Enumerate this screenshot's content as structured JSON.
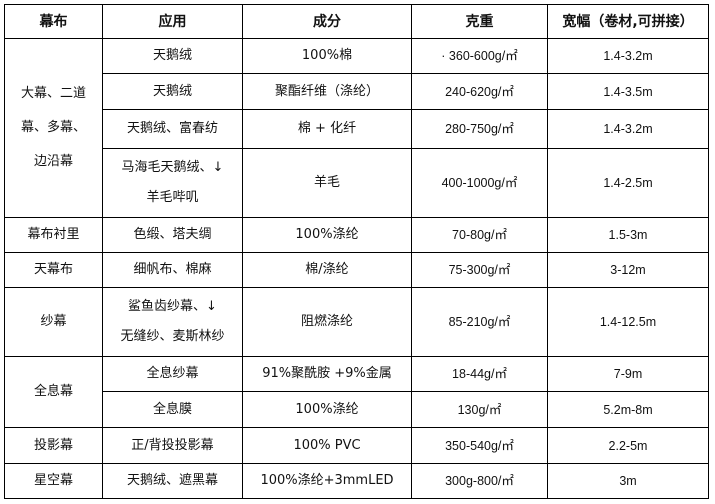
{
  "headers": [
    "幕布",
    "应用",
    "成分",
    "克重",
    "宽幅（卷材,可拼接）"
  ],
  "groups": {
    "g1": "大幕、二道幕、多幕、边沿幕",
    "g1_lines": [
      "大幕、二道",
      "幕、多幕、",
      "边沿幕"
    ],
    "g2": "幕布衬里",
    "g3": "天幕布",
    "g4": "纱幕",
    "g5": "全息幕",
    "g6": "投影幕",
    "g7": "星空幕"
  },
  "rows": [
    {
      "app": "天鹅绒",
      "comp": "100%棉",
      "weight": "· 360-600g/㎡",
      "width": "1.4-3.2m"
    },
    {
      "app": "天鹅绒",
      "comp": "聚酯纤维（涤纶）",
      "weight": "240-620g/㎡",
      "width": "1.4-3.5m"
    },
    {
      "app": "天鹅绒、富春纺",
      "comp": "棉 + 化纤",
      "weight": "280-750g/㎡",
      "width": "1.4-3.2m"
    },
    {
      "app_lines": [
        "马海毛天鹅绒、↓",
        "羊毛哔叽"
      ],
      "comp": "羊毛",
      "weight": "400-1000g/㎡",
      "width": "1.4-2.5m"
    },
    {
      "app": "色缎、塔夫绸",
      "comp": "100%涤纶",
      "weight": "70-80g/㎡",
      "width": "1.5-3m"
    },
    {
      "app": "细帆布、棉麻",
      "comp": "棉/涤纶",
      "weight": "75-300g/㎡",
      "width": "3-12m"
    },
    {
      "app_lines": [
        "鲨鱼齿纱幕、↓",
        "无缝纱、麦斯林纱"
      ],
      "comp": "阻燃涤纶",
      "weight": "85-210g/㎡",
      "width": "1.4-12.5m"
    },
    {
      "app": "全息纱幕",
      "comp": "91%聚酰胺 +9%金属",
      "weight": "18-44g/㎡",
      "width": "7-9m"
    },
    {
      "app": "全息膜",
      "comp": "100%涤纶",
      "weight": "130g/㎡",
      "width": "5.2m-8m"
    },
    {
      "app": "正/背投投影幕",
      "comp": "100% PVC",
      "weight": "350-540g/㎡",
      "width": "2.2-5m"
    },
    {
      "app": "天鹅绒、遮黑幕",
      "comp": "100%涤纶+3mmLED",
      "weight": "300g-800/㎡",
      "width": "3m"
    }
  ]
}
